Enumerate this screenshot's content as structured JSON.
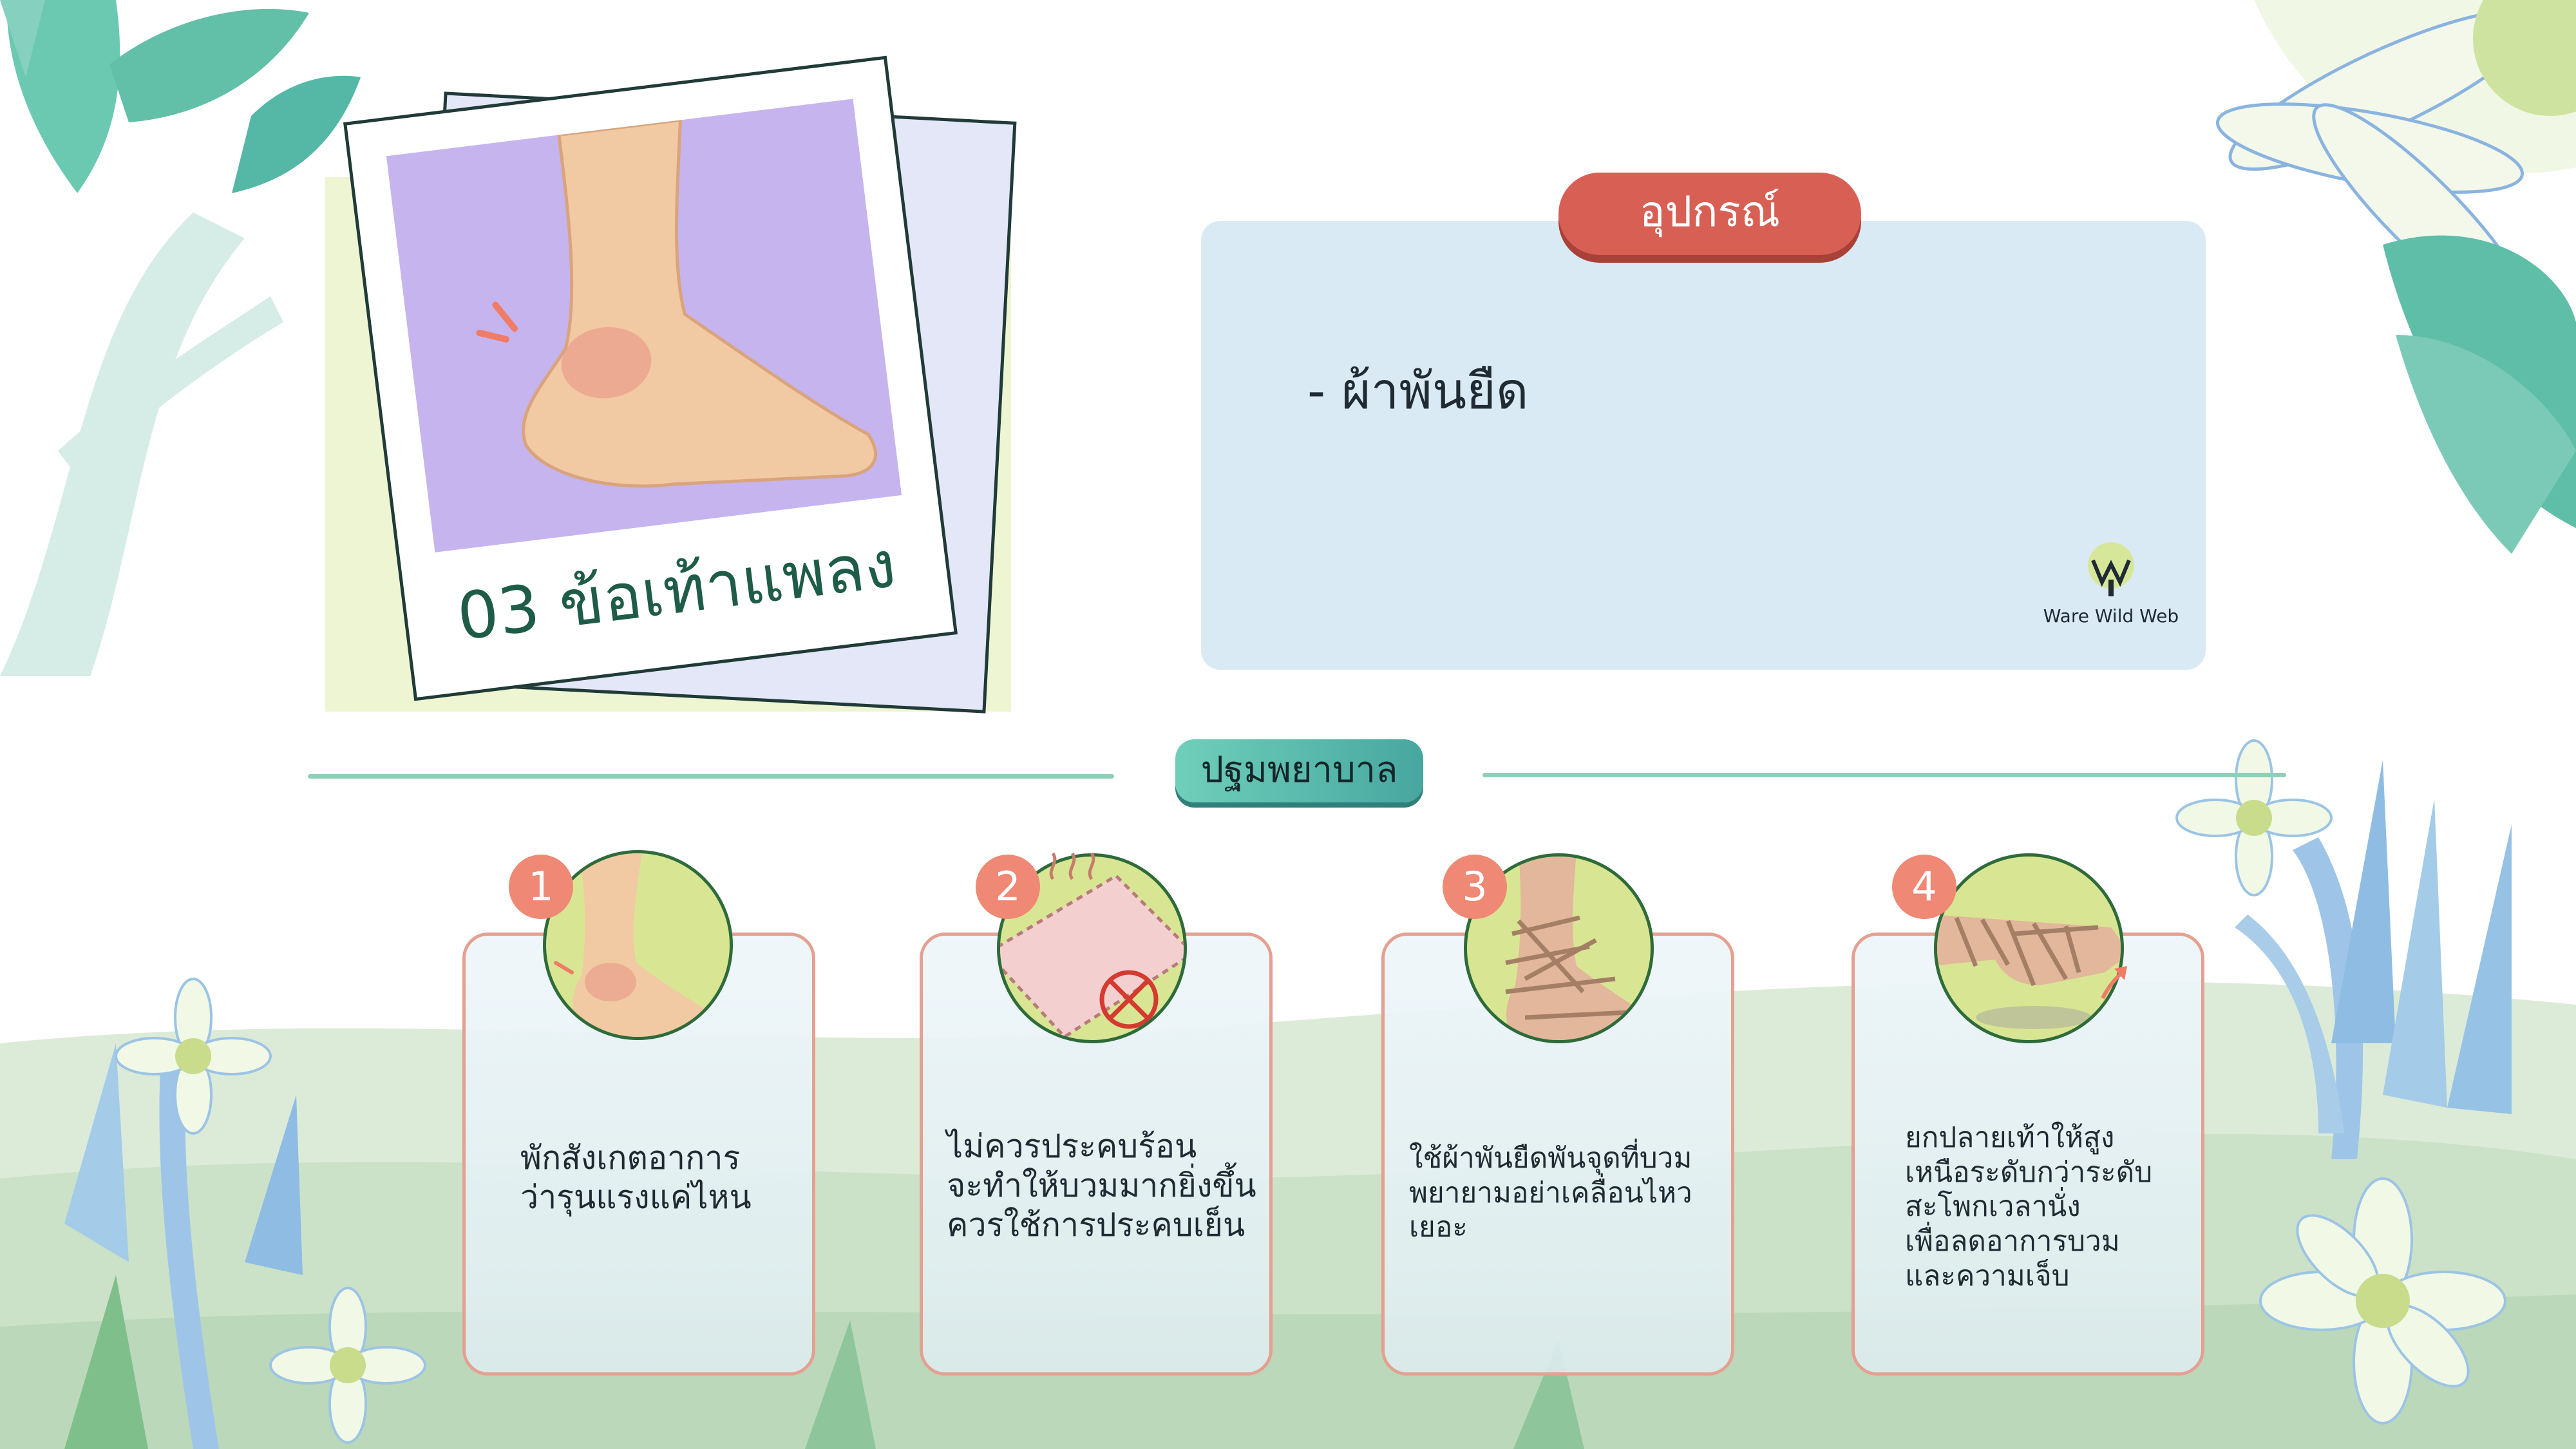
{
  "polaroid": {
    "title": "03 ข้อเท้าแพลง"
  },
  "equipment": {
    "heading": "อุปกรณ์",
    "items": [
      "- ผ้าพันยืด"
    ],
    "logo_text": "Ware Wild Web"
  },
  "first_aid": {
    "heading": "ปฐมพยาบาล",
    "steps": [
      {
        "number": "1",
        "lines": [
          "พักสังเกตอาการ",
          "ว่ารุนแรงแค่ไหน"
        ]
      },
      {
        "number": "2",
        "lines": [
          "ไม่ควรประคบร้อน",
          "จะทำให้บวมมากยิ่งขึ้น",
          "ควรใช้การประคบเย็น"
        ]
      },
      {
        "number": "3",
        "lines": [
          "ใช้ผ้าพันยืดพันจุดที่บวม",
          "พยายามอย่าเคลื่อนไหว",
          "เยอะ"
        ]
      },
      {
        "number": "4",
        "lines": [
          "ยกปลายเท้าให้สูง",
          "เหนือระดับกว่าระดับ",
          "สะโพกเวลานั่ง",
          "เพื่อลดอาการบวม",
          "และความเจ็บ"
        ]
      }
    ]
  },
  "colors": {
    "equipment_pill": "#d85f54",
    "first_aid_pill": "#5dbcae",
    "step_number": "#ef8874",
    "card_border": "#e4a090",
    "circle_fill": "#d8e694",
    "title_green": "#1e5c48"
  }
}
